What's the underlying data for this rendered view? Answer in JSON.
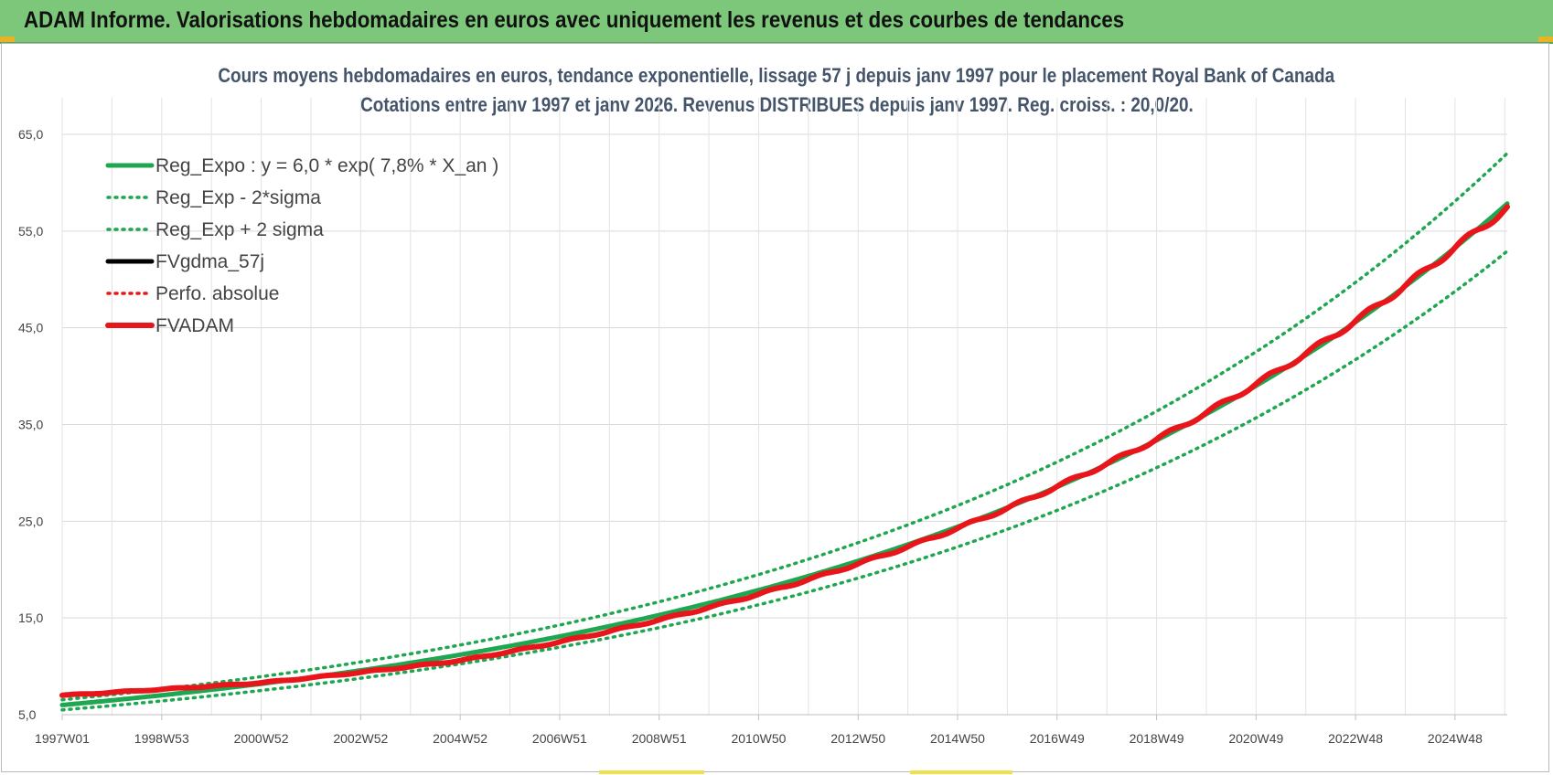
{
  "banner": {
    "title": "ADAM Informe. Valorisations hebdomadaires en euros avec uniquement les revenus et des courbes de tendances"
  },
  "chart_data": {
    "type": "line",
    "title_lines": [
      "Cours moyens hebdomadaires en euros, tendance exponentielle, lissage 57 j depuis janv 1997  pour le placement Royal Bank of Canada",
      "Cotations entre janv 1997 et janv 2026. Revenus DISTRIBUES depuis janv 1997.  Reg. croiss. : 20,0/20."
    ],
    "xlabel": "",
    "ylabel": "",
    "x_range_years": [
      1997.0,
      2026.05
    ],
    "ylim": [
      5,
      65
    ],
    "y_ticks": [
      "65,0",
      "55,0",
      "45,0",
      "35,0",
      "25,0",
      "15,0",
      "5,0"
    ],
    "y_tick_values": [
      65,
      55,
      45,
      35,
      25,
      15,
      5
    ],
    "x_tick_labels": [
      "1997W01",
      "1998W53",
      "2000W52",
      "2002W52",
      "2004W52",
      "2006W51",
      "2008W51",
      "2010W50",
      "2012W50",
      "2014W50",
      "2016W49",
      "2018W49",
      "2020W49",
      "2022W48",
      "2024W48"
    ],
    "x_tick_years": [
      1997.0,
      1999.0,
      2001.0,
      2003.0,
      2005.0,
      2007.0,
      2009.0,
      2011.0,
      2013.0,
      2015.0,
      2017.0,
      2019.0,
      2021.0,
      2023.0,
      2025.0
    ],
    "grid": true,
    "legend_position": "top-left",
    "regression": {
      "a": 6.0,
      "rate": 0.078,
      "lower_factor": 0.915,
      "upper_factor": 1.09
    },
    "series": [
      {
        "name": "Reg_Expo : y = 6,0 * exp( 7,8% *  X_an )",
        "color": "#1fa650",
        "style": "solid",
        "kind": "trend",
        "x": [
          1997.0,
          2001.0,
          2005.0,
          2009.0,
          2013.0,
          2017.0,
          2021.0,
          2025.0,
          2026.05
        ],
        "values": [
          6.0,
          8.2,
          11.2,
          15.3,
          20.8,
          28.4,
          38.8,
          52.9,
          57.4
        ]
      },
      {
        "name": "Reg_Exp - 2*sigma",
        "color": "#1fa650",
        "style": "dotted",
        "kind": "lower",
        "x": [
          1997.0,
          2001.0,
          2005.0,
          2009.0,
          2013.0,
          2017.0,
          2021.0,
          2025.0,
          2026.05
        ],
        "values": [
          5.5,
          7.5,
          10.2,
          14.0,
          19.0,
          26.0,
          35.5,
          48.4,
          52.5
        ]
      },
      {
        "name": "Reg_Exp + 2 sigma",
        "color": "#1fa650",
        "style": "dotted",
        "kind": "upper",
        "x": [
          1997.0,
          2001.0,
          2005.0,
          2009.0,
          2013.0,
          2017.0,
          2021.0,
          2025.0,
          2026.05
        ],
        "values": [
          6.5,
          8.9,
          12.2,
          16.7,
          22.7,
          31.0,
          42.3,
          57.7,
          62.6
        ]
      },
      {
        "name": "FVgdma_57j",
        "color": "#000000",
        "style": "solid",
        "kind": "fv",
        "x": [
          1997.0,
          2001.0,
          2005.0,
          2009.0,
          2013.0,
          2017.0,
          2021.0,
          2025.0,
          2026.05
        ],
        "values": [
          7.0,
          8.3,
          10.6,
          14.8,
          20.6,
          28.6,
          39.2,
          53.3,
          57.4
        ]
      },
      {
        "name": "Perfo. absolue",
        "color": "#e8161b",
        "style": "dotted",
        "kind": "fv",
        "x": [
          1997.0,
          2001.0,
          2005.0,
          2009.0,
          2013.0,
          2017.0,
          2021.0,
          2025.0,
          2026.05
        ],
        "values": [
          7.0,
          8.3,
          10.6,
          14.8,
          20.6,
          28.6,
          39.2,
          53.3,
          57.4
        ]
      },
      {
        "name": "FVADAM",
        "color": "#e8161b",
        "style": "thick",
        "kind": "fv",
        "x": [
          1997.0,
          2001.0,
          2005.0,
          2009.0,
          2013.0,
          2017.0,
          2021.0,
          2025.0,
          2026.05
        ],
        "values": [
          7.0,
          8.3,
          10.6,
          14.8,
          20.6,
          28.6,
          39.2,
          53.3,
          57.4
        ]
      }
    ]
  }
}
